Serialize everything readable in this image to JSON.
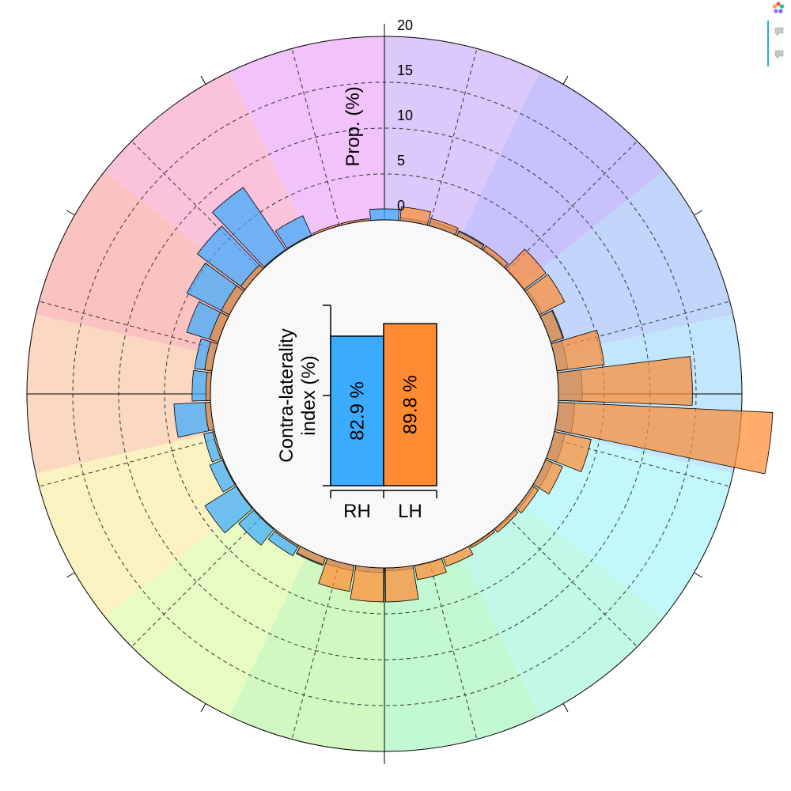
{
  "chart_data": {
    "type": "polar-bar",
    "radial_axis": {
      "label": "Prop. (%)",
      "ticks": [
        "0",
        "5",
        "10",
        "15",
        "20"
      ],
      "range": [
        0,
        20
      ]
    },
    "sectors": 12,
    "sector_colors": [
      "#dcc8fb",
      "#c7c2fb",
      "#c2d6fb",
      "#c2e6fb",
      "#c2f8fb",
      "#c2f8e8",
      "#c2f8d2",
      "#d2f8c2",
      "#e8fbc2",
      "#fbf2c2",
      "#fbd8c2",
      "#fbc2c2",
      "#fbc2dc",
      "#f2c2fb"
    ],
    "series": [
      {
        "name": "RH",
        "color": "#3aabff",
        "values": [
          1.2,
          0.3,
          0.5,
          0.6,
          0.2,
          0.1,
          0.3,
          1.5,
          1.2,
          2.6,
          1.8,
          1.2,
          0.8,
          0.3,
          0.2,
          0.1,
          0,
          0.1,
          0.3,
          0.5,
          0.6,
          0.9,
          1.3,
          2.3,
          4.1,
          1.6,
          1.2,
          4.0,
          2.0,
          1.9,
          3.6,
          5.2,
          6.5,
          8.3,
          2.4,
          0,
          0
        ]
      },
      {
        "name": "LH",
        "color": "#ff8c33",
        "values": [
          0,
          1.5,
          0.8,
          0.5,
          0.6,
          3.0,
          3.1,
          1.4,
          5.2,
          14.6,
          23.4,
          4.1,
          2.0,
          0.8,
          0.5,
          0.3,
          1.0,
          1.6,
          3.7,
          3.7,
          2.9,
          0.8,
          0.2,
          0.1,
          0.1,
          0.1,
          0.2,
          0.6,
          0.5,
          0.8,
          1.0,
          1.0,
          0.6,
          0.1,
          0.1,
          0.2,
          0.2
        ]
      }
    ],
    "inset": {
      "type": "bar",
      "ylabel_line1": "Contra-laterality",
      "ylabel_line2": "index (%)",
      "categories": [
        "RH",
        "LH"
      ],
      "values": [
        82.9,
        89.8
      ],
      "labels": [
        "82.9 %",
        "89.8 %"
      ],
      "colors": [
        "#3aabff",
        "#ff8c33"
      ],
      "ylim": [
        0,
        100
      ]
    }
  },
  "toolbar": {
    "logo_icon": "plotly-logo-icon",
    "buttons": [
      "comment-icon",
      "comment-icon"
    ]
  }
}
